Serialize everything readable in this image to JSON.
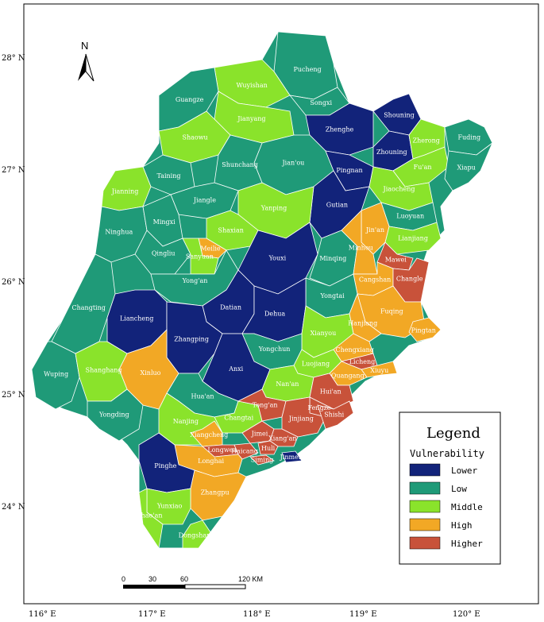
{
  "colors": {
    "Lower": "#12237a",
    "Low": "#1f9a78",
    "Middle": "#8ae32b",
    "High": "#f2a825",
    "Higher": "#c8523a",
    "border": "#ffffff",
    "frame": "#000000"
  },
  "north_label": "N",
  "lat_labels": [
    "28° N",
    "27° N",
    "26° N",
    "25° N",
    "24° N"
  ],
  "lon_labels": [
    "116° E",
    "117° E",
    "118° E",
    "119° E",
    "120° E"
  ],
  "legend": {
    "title": "Legend",
    "subtitle": "Vulnerability",
    "items": [
      "Lower",
      "Low",
      "Middle",
      "High",
      "Higher"
    ]
  },
  "scale": {
    "ticks": [
      "0",
      "30",
      "60"
    ],
    "end_label": "120 KM"
  },
  "counties": [
    {
      "name": "Pucheng",
      "class": "Low"
    },
    {
      "name": "Songxi",
      "class": "Low"
    },
    {
      "name": "Wuyishan",
      "class": "Middle"
    },
    {
      "name": "Guangze",
      "class": "Low"
    },
    {
      "name": "Jianyang",
      "class": "Middle"
    },
    {
      "name": "Shaowu",
      "class": "Middle"
    },
    {
      "name": "Zhenghe",
      "class": "Lower"
    },
    {
      "name": "Shouning",
      "class": "Lower"
    },
    {
      "name": "Zhouning",
      "class": "Lower"
    },
    {
      "name": "Zherong",
      "class": "Middle"
    },
    {
      "name": "Fuding",
      "class": "Low"
    },
    {
      "name": "Fu'an",
      "class": "Middle"
    },
    {
      "name": "Xiapu",
      "class": "Low"
    },
    {
      "name": "Jian'ou",
      "class": "Low"
    },
    {
      "name": "Pingnan",
      "class": "Lower"
    },
    {
      "name": "Jiaocheng",
      "class": "Middle"
    },
    {
      "name": "Taining",
      "class": "Low"
    },
    {
      "name": "Jianning",
      "class": "Middle"
    },
    {
      "name": "Shunchang",
      "class": "Low"
    },
    {
      "name": "Jiangle",
      "class": "Low"
    },
    {
      "name": "Gutian",
      "class": "Lower"
    },
    {
      "name": "Luoyuan",
      "class": "Low"
    },
    {
      "name": "Yanping",
      "class": "Middle"
    },
    {
      "name": "Shaxian",
      "class": "Middle"
    },
    {
      "name": "Lianjiang",
      "class": "Middle"
    },
    {
      "name": "Jin'an",
      "class": "High"
    },
    {
      "name": "Ninghua",
      "class": "Low"
    },
    {
      "name": "Mingxi",
      "class": "Low"
    },
    {
      "name": "Meilie",
      "class": "High"
    },
    {
      "name": "Qingliu",
      "class": "Low"
    },
    {
      "name": "Sanyuan",
      "class": "Middle"
    },
    {
      "name": "Youxi",
      "class": "Lower"
    },
    {
      "name": "Minqing",
      "class": "Low"
    },
    {
      "name": "Minhou",
      "class": "High"
    },
    {
      "name": "Mawei",
      "class": "Higher"
    },
    {
      "name": "Cangshan",
      "class": "High"
    },
    {
      "name": "Changle",
      "class": "Higher"
    },
    {
      "name": "Yong'an",
      "class": "Low"
    },
    {
      "name": "Datian",
      "class": "Lower"
    },
    {
      "name": "Yongtai",
      "class": "Low"
    },
    {
      "name": "Dehua",
      "class": "Lower"
    },
    {
      "name": "Changting",
      "class": "Low"
    },
    {
      "name": "Liancheng",
      "class": "Lower"
    },
    {
      "name": "Fuqing",
      "class": "High"
    },
    {
      "name": "Hanjiang",
      "class": "High"
    },
    {
      "name": "Pingtan",
      "class": "High"
    },
    {
      "name": "Zhangping",
      "class": "Lower"
    },
    {
      "name": "Xianyou",
      "class": "Middle"
    },
    {
      "name": "Chengxiang",
      "class": "High"
    },
    {
      "name": "Licheng",
      "class": "Higher"
    },
    {
      "name": "Xiuyu",
      "class": "High"
    },
    {
      "name": "Xinluo",
      "class": "High"
    },
    {
      "name": "Yongchun",
      "class": "Low"
    },
    {
      "name": "Wuping",
      "class": "Low"
    },
    {
      "name": "Shanghang",
      "class": "Middle"
    },
    {
      "name": "Anxi",
      "class": "Lower"
    },
    {
      "name": "Luojiang",
      "class": "Middle"
    },
    {
      "name": "Quangang",
      "class": "High"
    },
    {
      "name": "Nan'an",
      "class": "Middle"
    },
    {
      "name": "Hui'an",
      "class": "Higher"
    },
    {
      "name": "Fengze",
      "class": "Higher"
    },
    {
      "name": "Yongding",
      "class": "Low"
    },
    {
      "name": "Hua'an",
      "class": "Low"
    },
    {
      "name": "Changtai",
      "class": "Middle"
    },
    {
      "name": "Tong'an",
      "class": "Higher"
    },
    {
      "name": "Jinjiang",
      "class": "Higher"
    },
    {
      "name": "Shishi",
      "class": "Higher"
    },
    {
      "name": "Nanjing",
      "class": "Middle"
    },
    {
      "name": "Xiangcheng",
      "class": "High"
    },
    {
      "name": "Jimei",
      "class": "Higher"
    },
    {
      "name": "Xiang'an",
      "class": "Higher"
    },
    {
      "name": "Longwen",
      "class": "Higher"
    },
    {
      "name": "Haicang",
      "class": "Higher"
    },
    {
      "name": "Huli",
      "class": "Higher"
    },
    {
      "name": "Siming",
      "class": "Higher"
    },
    {
      "name": "Jinmen",
      "class": "Lower"
    },
    {
      "name": "Longhai",
      "class": "High"
    },
    {
      "name": "Pinghe",
      "class": "Lower"
    },
    {
      "name": "Zhangpu",
      "class": "High"
    },
    {
      "name": "Yunxiao",
      "class": "Middle"
    },
    {
      "name": "Zhao'an",
      "class": "Middle"
    },
    {
      "name": "Dongshan",
      "class": "Middle"
    }
  ]
}
